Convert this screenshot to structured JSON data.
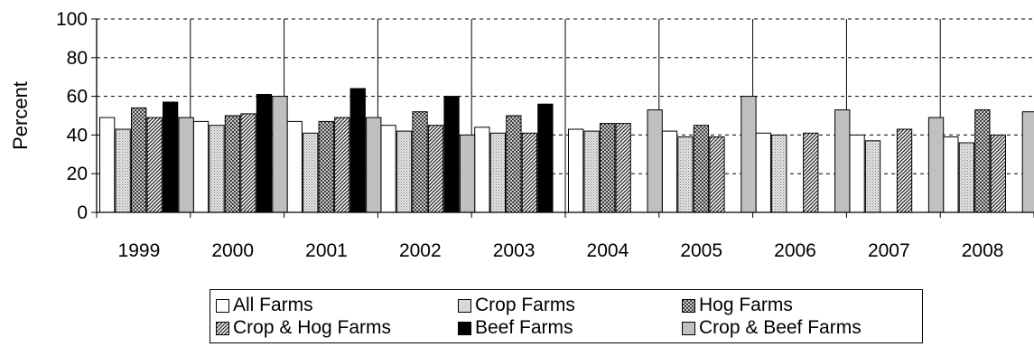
{
  "chart_data": {
    "type": "bar",
    "categories": [
      "1999",
      "2000",
      "2001",
      "2002",
      "2003",
      "2004",
      "2005",
      "2006",
      "2007",
      "2008"
    ],
    "ylabel": "Percent",
    "ylim": [
      0,
      100
    ],
    "yticks": [
      "0",
      "20",
      "40",
      "60",
      "80",
      "100"
    ],
    "grid": "dashed horizontal",
    "legend_position": "bottom",
    "series": [
      {
        "name": "All Farms",
        "pattern": "white",
        "values": [
          49,
          47,
          47,
          45,
          44,
          43,
          42,
          41,
          40,
          39
        ]
      },
      {
        "name": "Crop Farms",
        "pattern": "dotted",
        "values": [
          43,
          45,
          41,
          42,
          41,
          42,
          39,
          40,
          37,
          36
        ]
      },
      {
        "name": "Hog Farms",
        "pattern": "crosshatch",
        "values": [
          54,
          50,
          47,
          52,
          50,
          46,
          45,
          null,
          null,
          53
        ]
      },
      {
        "name": "Crop & Hog Farms",
        "pattern": "diagonal",
        "values": [
          49,
          51,
          49,
          45,
          41,
          46,
          39,
          41,
          43,
          40
        ]
      },
      {
        "name": "Beef Farms",
        "pattern": "black",
        "values": [
          57,
          61,
          64,
          60,
          56,
          null,
          null,
          null,
          null,
          null
        ]
      },
      {
        "name": "Crop & Beef Farms",
        "pattern": "gray",
        "values": [
          49,
          60,
          49,
          40,
          null,
          53,
          60,
          53,
          49,
          52
        ]
      }
    ]
  }
}
